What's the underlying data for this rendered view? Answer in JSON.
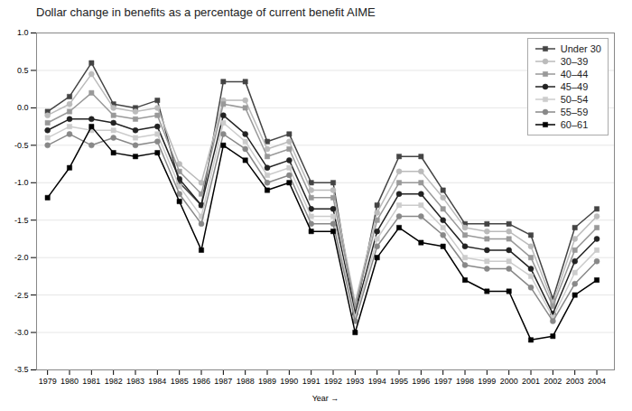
{
  "chart_data": {
    "type": "line",
    "title": "Dollar change in benefits as a percentage of current benefit AIME",
    "xlabel": "Year",
    "x": [
      1979,
      1980,
      1981,
      1982,
      1983,
      1984,
      1985,
      1986,
      1987,
      1988,
      1989,
      1990,
      1991,
      1992,
      1993,
      1994,
      1995,
      1996,
      1997,
      1998,
      1999,
      2000,
      2001,
      2002,
      2003,
      2004
    ],
    "series": [
      {
        "name": "Under 30",
        "color": "#444444",
        "marker": "square",
        "values": [
          -0.05,
          0.15,
          0.6,
          0.05,
          0.0,
          0.1,
          -1.0,
          -1.3,
          0.35,
          0.35,
          -0.45,
          -0.35,
          -1.0,
          -1.0,
          -2.75,
          -1.3,
          -0.65,
          -0.65,
          -1.1,
          -1.55,
          -1.55,
          -1.55,
          -1.7,
          -2.55,
          -1.6,
          -1.35
        ]
      },
      {
        "name": "30–39",
        "color": "#bbbbbb",
        "marker": "circle",
        "values": [
          -0.1,
          0.05,
          0.45,
          0.0,
          -0.05,
          0.0,
          -0.75,
          -1.0,
          0.1,
          0.1,
          -0.55,
          -0.45,
          -1.1,
          -1.1,
          -2.6,
          -1.4,
          -0.85,
          -0.85,
          -1.2,
          -1.6,
          -1.65,
          -1.65,
          -1.85,
          -2.6,
          -1.75,
          -1.45
        ]
      },
      {
        "name": "40–44",
        "color": "#999999",
        "marker": "square",
        "values": [
          -0.2,
          -0.05,
          0.2,
          -0.1,
          -0.15,
          -0.1,
          -0.85,
          -1.15,
          0.05,
          0.0,
          -0.65,
          -0.55,
          -1.2,
          -1.2,
          -2.65,
          -1.5,
          -1.0,
          -1.0,
          -1.35,
          -1.7,
          -1.75,
          -1.75,
          -2.0,
          -2.65,
          -1.9,
          -1.6
        ]
      },
      {
        "name": "45–49",
        "color": "#222222",
        "marker": "circle",
        "values": [
          -0.3,
          -0.15,
          -0.15,
          -0.2,
          -0.3,
          -0.25,
          -0.95,
          -1.3,
          -0.1,
          -0.35,
          -0.8,
          -0.7,
          -1.35,
          -1.35,
          -2.75,
          -1.65,
          -1.15,
          -1.15,
          -1.5,
          -1.85,
          -1.9,
          -1.9,
          -2.15,
          -2.75,
          -2.05,
          -1.75
        ]
      },
      {
        "name": "50–54",
        "color": "#cccccc",
        "marker": "square",
        "values": [
          -0.4,
          -0.25,
          -0.3,
          -0.3,
          -0.4,
          -0.35,
          -1.05,
          -1.45,
          -0.2,
          -0.45,
          -0.9,
          -0.8,
          -1.45,
          -1.45,
          -2.8,
          -1.75,
          -1.3,
          -1.3,
          -1.6,
          -2.0,
          -2.05,
          -2.05,
          -2.25,
          -2.8,
          -2.2,
          -1.9
        ]
      },
      {
        "name": "55–59",
        "color": "#888888",
        "marker": "circle",
        "values": [
          -0.5,
          -0.35,
          -0.5,
          -0.4,
          -0.5,
          -0.45,
          -1.15,
          -1.55,
          -0.35,
          -0.55,
          -1.0,
          -0.9,
          -1.55,
          -1.55,
          -2.85,
          -1.85,
          -1.45,
          -1.45,
          -1.7,
          -2.1,
          -2.15,
          -2.15,
          -2.4,
          -2.85,
          -2.35,
          -2.05
        ]
      },
      {
        "name": "60–61",
        "color": "#000000",
        "marker": "square",
        "values": [
          -1.2,
          -0.8,
          -0.25,
          -0.6,
          -0.65,
          -0.6,
          -1.25,
          -1.9,
          -0.5,
          -0.7,
          -1.1,
          -1.0,
          -1.65,
          -1.65,
          -3.0,
          -2.0,
          -1.6,
          -1.8,
          -1.85,
          -2.3,
          -2.45,
          -2.45,
          -3.1,
          -3.05,
          -2.5,
          -2.3
        ]
      }
    ],
    "xlim": [
      1978.5,
      2004.8
    ],
    "xticks": [
      1979,
      1980,
      1981,
      1982,
      1983,
      1984,
      1985,
      1986,
      1987,
      1988,
      1989,
      1990,
      1991,
      1992,
      1993,
      1994,
      1995,
      1996,
      1997,
      1998,
      1999,
      2000,
      2001,
      2002,
      2003,
      2004
    ],
    "ylim": [
      -3.5,
      1.0
    ],
    "yticks": [
      {
        "value": 1.0,
        "label": "1.0"
      },
      0.5,
      {
        "value": 0.0,
        "label": "0.0"
      },
      -0.5,
      {
        "value": -1.0,
        "label": "-1.0"
      },
      -1.5,
      {
        "value": -2.0,
        "label": "-2.0"
      },
      -2.5,
      {
        "value": -3.0,
        "label": "-3.0"
      },
      -3.5
    ],
    "grid": true,
    "legend": "upper right"
  }
}
